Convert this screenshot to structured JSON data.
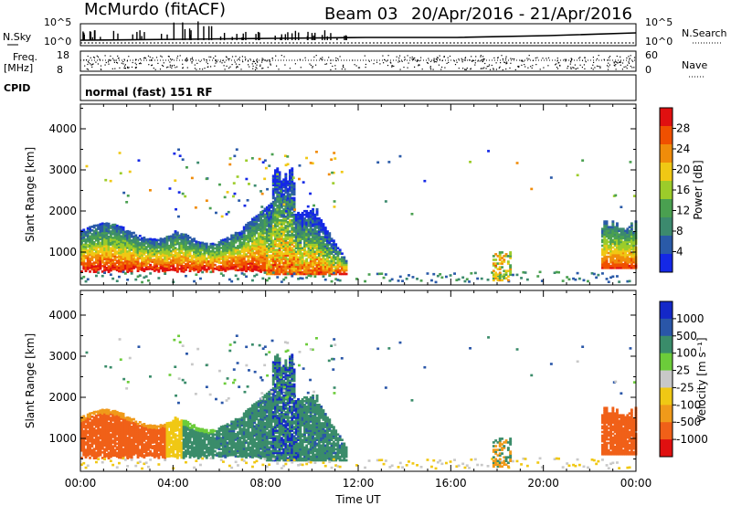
{
  "title": {
    "station": "McMurdo (fitACF)",
    "beam": "Beam 03",
    "date_range": "20/Apr/2016 - 21/Apr/2016"
  },
  "top_panels": {
    "nsky_label": "N.Sky",
    "nsky_ticks": [
      "10^5",
      "10^0"
    ],
    "nsearch_label": "N.Search",
    "nsearch_ticks": [
      "10^5",
      "10^0"
    ],
    "freq_label": "Freq.",
    "freq_unit": "[MHz]",
    "freq_ticks": [
      "18",
      "8"
    ],
    "nave_label": "Nave",
    "nave_ticks": [
      "60",
      "0"
    ],
    "cpid_label": "CPID",
    "cpid_value": "normal (fast) 151 RF"
  },
  "colors": {
    "power_scale": [
      "#1428e6",
      "#2a5aa8",
      "#3c8a6e",
      "#4aa050",
      "#9ccc2a",
      "#f0c814",
      "#f08c0a",
      "#f05000",
      "#e01010"
    ],
    "velocity_scale": [
      "#1428c8",
      "#2a56a8",
      "#3a8c6a",
      "#6ccc3a",
      "#c8c8c8",
      "#f0c814",
      "#f09a1a",
      "#f06018",
      "#e01010"
    ]
  },
  "chart_data": [
    {
      "type": "heatmap",
      "name": "power",
      "ylabel": "Slant Range [km]",
      "yticks": [
        "1000",
        "2000",
        "3000",
        "4000"
      ],
      "ylim": [
        200,
        4600
      ],
      "xticks": [
        "00:00",
        "04:00",
        "08:00",
        "12:00",
        "16:00",
        "20:00",
        "00:00"
      ],
      "xlim_hours": [
        0,
        24
      ],
      "colorbar": {
        "label": "Power [dB]",
        "ticks": [
          "4",
          "8",
          "12",
          "16",
          "20",
          "24",
          "28"
        ],
        "range": [
          0,
          32
        ]
      }
    },
    {
      "type": "heatmap",
      "name": "velocity",
      "ylabel": "Slant Range [km]",
      "yticks": [
        "1000",
        "2000",
        "3000",
        "4000"
      ],
      "ylim": [
        200,
        4600
      ],
      "xticks": [
        "00:00",
        "04:00",
        "08:00",
        "12:00",
        "16:00",
        "20:00",
        "00:00"
      ],
      "xlabel": "Time UT",
      "xlim_hours": [
        0,
        24
      ],
      "colorbar": {
        "label": "Velocity [m s⁻¹]",
        "ticks": [
          "1000",
          "500",
          "100",
          "25",
          "-25",
          "-100",
          "-500",
          "-1000"
        ]
      }
    }
  ]
}
